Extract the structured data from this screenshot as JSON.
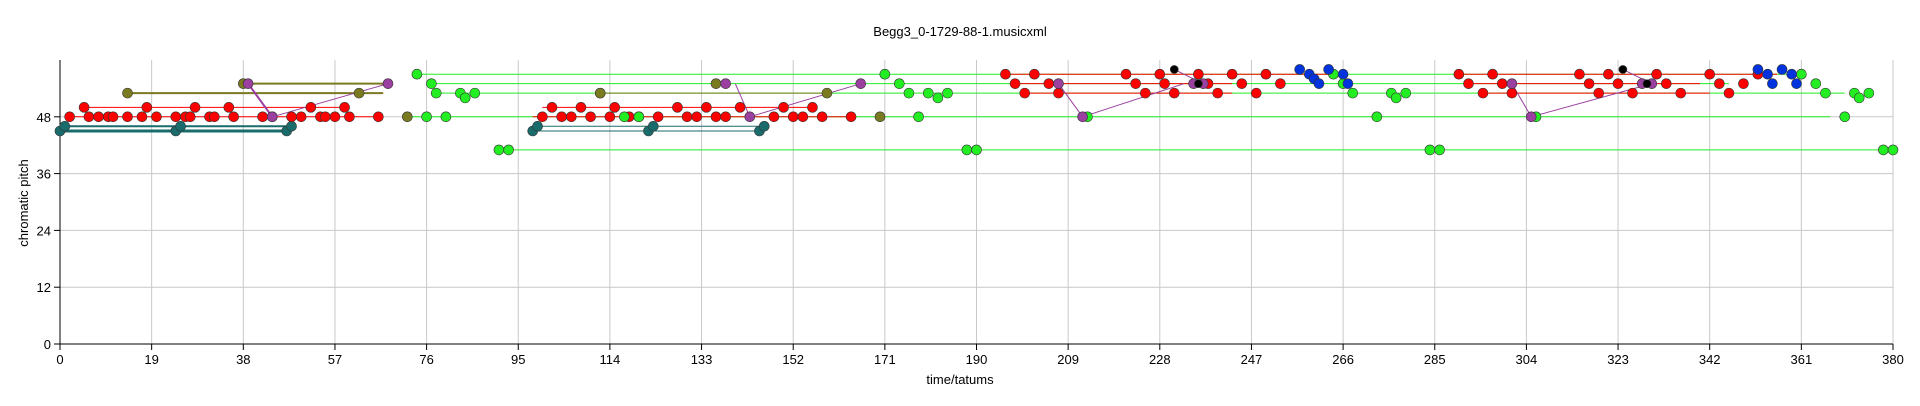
{
  "chart_data": {
    "type": "scatter",
    "title": "Begg3_0-1729-88-1.musicxml",
    "xlabel": "time/tatums",
    "ylabel": "chromatic pitch",
    "xlim": [
      0,
      380
    ],
    "ylim": [
      0,
      60
    ],
    "xticks": [
      0,
      19,
      38,
      57,
      76,
      95,
      114,
      133,
      152,
      171,
      190,
      209,
      228,
      247,
      266,
      285,
      304,
      323,
      342,
      361,
      380
    ],
    "yticks": [
      0,
      12,
      24,
      36,
      48
    ],
    "grid": true,
    "colors": {
      "red": "#ff0000",
      "green": "#22ee22",
      "blue": "#0033dd",
      "teal": "#1a6b6b",
      "olive": "#7a7a20",
      "purple": "#9b3fa0",
      "black": "#000000"
    },
    "segments": [
      {
        "color": "teal",
        "x1": 0,
        "x2": 46,
        "y": 45,
        "w": 3
      },
      {
        "color": "teal",
        "x1": 1,
        "x2": 48,
        "y": 46,
        "w": 2
      },
      {
        "color": "red",
        "x1": 1,
        "x2": 66,
        "y": 48,
        "w": 1
      },
      {
        "color": "red",
        "x1": 5,
        "x2": 60,
        "y": 50,
        "w": 1
      },
      {
        "color": "olive",
        "x1": 14,
        "x2": 67,
        "y": 53,
        "w": 2
      },
      {
        "color": "olive",
        "x1": 38,
        "x2": 69,
        "y": 55,
        "w": 2
      },
      {
        "color": "green",
        "x1": 74,
        "x2": 361,
        "y": 57,
        "w": 1
      },
      {
        "color": "green",
        "x1": 77,
        "x2": 346,
        "y": 55,
        "w": 1
      },
      {
        "color": "green",
        "x1": 78,
        "x2": 370,
        "y": 53,
        "w": 1
      },
      {
        "color": "green",
        "x1": 72,
        "x2": 367,
        "y": 48,
        "w": 1
      },
      {
        "color": "green",
        "x1": 90,
        "x2": 380,
        "y": 41,
        "w": 1
      },
      {
        "color": "teal",
        "x1": 98,
        "x2": 146,
        "y": 46,
        "w": 1
      },
      {
        "color": "teal",
        "x1": 97,
        "x2": 145,
        "y": 45,
        "w": 1
      },
      {
        "color": "red",
        "x1": 100,
        "x2": 156,
        "y": 50,
        "w": 1
      },
      {
        "color": "red",
        "x1": 98,
        "x2": 164,
        "y": 48,
        "w": 1
      },
      {
        "color": "olive",
        "x1": 112,
        "x2": 160,
        "y": 53,
        "w": 1
      },
      {
        "color": "red",
        "x1": 196,
        "x2": 263,
        "y": 57,
        "w": 1
      },
      {
        "color": "red",
        "x1": 198,
        "x2": 243,
        "y": 55,
        "w": 1
      },
      {
        "color": "red",
        "x1": 200,
        "x2": 243,
        "y": 53,
        "w": 1
      },
      {
        "color": "red",
        "x1": 290,
        "x2": 356,
        "y": 57,
        "w": 1
      },
      {
        "color": "red",
        "x1": 292,
        "x2": 340,
        "y": 55,
        "w": 1
      },
      {
        "color": "red",
        "x1": 295,
        "x2": 342,
        "y": 53,
        "w": 1
      }
    ],
    "links": [
      {
        "x1": 39,
        "y1": 55,
        "x2": 44,
        "y2": 48,
        "w": 2
      },
      {
        "x1": 44,
        "y1": 48,
        "x2": 68,
        "y2": 55,
        "w": 1
      },
      {
        "x1": 140,
        "y1": 55,
        "x2": 143,
        "y2": 48,
        "w": 1
      },
      {
        "x1": 143,
        "y1": 48,
        "x2": 166,
        "y2": 55,
        "w": 1
      },
      {
        "x1": 231,
        "y1": 58,
        "x2": 237,
        "y2": 55,
        "w": 1
      },
      {
        "x1": 212,
        "y1": 48,
        "x2": 233,
        "y2": 55,
        "w": 1
      },
      {
        "x1": 207,
        "y1": 55,
        "x2": 212,
        "y2": 48,
        "w": 1
      },
      {
        "x1": 305,
        "y1": 48,
        "x2": 330,
        "y2": 55,
        "w": 1
      },
      {
        "x1": 301,
        "y1": 55,
        "x2": 305,
        "y2": 48,
        "w": 1
      },
      {
        "x1": 324,
        "y1": 58,
        "x2": 330,
        "y2": 55,
        "w": 1
      }
    ],
    "points": [
      {
        "color": "teal",
        "r": 5,
        "xy": [
          [
            0,
            45
          ],
          [
            1,
            46
          ],
          [
            24,
            45
          ],
          [
            25,
            46
          ],
          [
            47,
            45
          ],
          [
            48,
            46
          ],
          [
            98,
            45
          ],
          [
            99,
            46
          ],
          [
            122,
            45
          ],
          [
            123,
            46
          ],
          [
            145,
            45
          ],
          [
            146,
            46
          ]
        ]
      },
      {
        "color": "red",
        "r": 5,
        "xy": [
          [
            2,
            48
          ],
          [
            5,
            50
          ],
          [
            6,
            48
          ],
          [
            8,
            48
          ],
          [
            10,
            48
          ],
          [
            11,
            48
          ],
          [
            14,
            48
          ],
          [
            17,
            48
          ],
          [
            18,
            50
          ],
          [
            20,
            48
          ],
          [
            24,
            48
          ],
          [
            26,
            48
          ],
          [
            27,
            48
          ],
          [
            28,
            50
          ],
          [
            31,
            48
          ],
          [
            32,
            48
          ],
          [
            35,
            50
          ],
          [
            36,
            48
          ],
          [
            42,
            48
          ],
          [
            44,
            48
          ],
          [
            48,
            48
          ],
          [
            50,
            48
          ],
          [
            52,
            50
          ],
          [
            54,
            48
          ],
          [
            55,
            48
          ],
          [
            57,
            48
          ],
          [
            59,
            50
          ],
          [
            60,
            48
          ],
          [
            66,
            48
          ],
          [
            100,
            48
          ],
          [
            102,
            50
          ],
          [
            104,
            48
          ],
          [
            106,
            48
          ],
          [
            108,
            50
          ],
          [
            110,
            48
          ],
          [
            114,
            48
          ],
          [
            115,
            50
          ],
          [
            118,
            48
          ],
          [
            120,
            48
          ],
          [
            124,
            48
          ],
          [
            128,
            50
          ],
          [
            130,
            48
          ],
          [
            132,
            48
          ],
          [
            134,
            50
          ],
          [
            136,
            48
          ],
          [
            138,
            48
          ],
          [
            141,
            50
          ],
          [
            148,
            48
          ],
          [
            150,
            50
          ],
          [
            152,
            48
          ],
          [
            154,
            48
          ],
          [
            156,
            50
          ],
          [
            158,
            48
          ],
          [
            164,
            48
          ]
        ]
      },
      {
        "color": "red",
        "r": 5,
        "xy": [
          [
            196,
            57
          ],
          [
            198,
            55
          ],
          [
            200,
            53
          ],
          [
            202,
            57
          ],
          [
            205,
            55
          ],
          [
            207,
            53
          ],
          [
            221,
            57
          ],
          [
            223,
            55
          ],
          [
            225,
            53
          ],
          [
            228,
            57
          ],
          [
            229,
            55
          ],
          [
            231,
            53
          ],
          [
            236,
            57
          ],
          [
            238,
            55
          ],
          [
            240,
            53
          ],
          [
            243,
            57
          ],
          [
            245,
            55
          ],
          [
            248,
            53
          ],
          [
            250,
            57
          ],
          [
            253,
            55
          ],
          [
            290,
            57
          ],
          [
            292,
            55
          ],
          [
            295,
            53
          ],
          [
            297,
            57
          ],
          [
            299,
            55
          ],
          [
            301,
            53
          ],
          [
            315,
            57
          ],
          [
            317,
            55
          ],
          [
            319,
            53
          ],
          [
            321,
            57
          ],
          [
            323,
            55
          ],
          [
            326,
            53
          ],
          [
            331,
            57
          ],
          [
            333,
            55
          ],
          [
            336,
            53
          ],
          [
            342,
            57
          ],
          [
            344,
            55
          ],
          [
            346,
            53
          ],
          [
            349,
            55
          ],
          [
            352,
            57
          ]
        ]
      },
      {
        "color": "green",
        "r": 5,
        "xy": [
          [
            74,
            57
          ],
          [
            77,
            55
          ],
          [
            78,
            53
          ],
          [
            83,
            53
          ],
          [
            84,
            52
          ],
          [
            86,
            53
          ],
          [
            91,
            41
          ],
          [
            93,
            41
          ],
          [
            112,
            53
          ],
          [
            117,
            48
          ],
          [
            120,
            48
          ],
          [
            76,
            48
          ],
          [
            80,
            48
          ],
          [
            171,
            57
          ],
          [
            174,
            55
          ],
          [
            176,
            53
          ],
          [
            178,
            48
          ],
          [
            180,
            53
          ],
          [
            182,
            52
          ],
          [
            184,
            53
          ],
          [
            188,
            41
          ],
          [
            190,
            41
          ],
          [
            213,
            48
          ],
          [
            264,
            57
          ],
          [
            266,
            55
          ],
          [
            268,
            53
          ],
          [
            273,
            48
          ],
          [
            276,
            53
          ],
          [
            277,
            52
          ],
          [
            279,
            53
          ],
          [
            284,
            41
          ],
          [
            286,
            41
          ],
          [
            306,
            48
          ],
          [
            361,
            57
          ],
          [
            364,
            55
          ],
          [
            366,
            53
          ],
          [
            370,
            48
          ],
          [
            372,
            53
          ],
          [
            373,
            52
          ],
          [
            375,
            53
          ],
          [
            378,
            41
          ],
          [
            380,
            41
          ]
        ]
      },
      {
        "color": "blue",
        "r": 5,
        "xy": [
          [
            257,
            58
          ],
          [
            259,
            57
          ],
          [
            260,
            56
          ],
          [
            261,
            55
          ],
          [
            263,
            58
          ],
          [
            266,
            57
          ],
          [
            267,
            55
          ],
          [
            352,
            58
          ],
          [
            354,
            57
          ],
          [
            355,
            55
          ],
          [
            357,
            58
          ],
          [
            359,
            57
          ],
          [
            360,
            55
          ]
        ]
      },
      {
        "color": "olive",
        "r": 5,
        "xy": [
          [
            14,
            53
          ],
          [
            38,
            55
          ],
          [
            62,
            53
          ],
          [
            72,
            48
          ],
          [
            112,
            53
          ],
          [
            136,
            55
          ],
          [
            159,
            53
          ],
          [
            170,
            48
          ]
        ]
      },
      {
        "color": "purple",
        "r": 5,
        "xy": [
          [
            39,
            55
          ],
          [
            44,
            48
          ],
          [
            68,
            55
          ],
          [
            138,
            55
          ],
          [
            143,
            48
          ],
          [
            166,
            55
          ],
          [
            212,
            48
          ],
          [
            207,
            55
          ],
          [
            237,
            55
          ],
          [
            235,
            55
          ],
          [
            305,
            48
          ],
          [
            301,
            55
          ],
          [
            330,
            55
          ],
          [
            328,
            55
          ]
        ]
      },
      {
        "color": "black",
        "r": 4,
        "xy": [
          [
            231,
            58
          ],
          [
            324,
            58
          ],
          [
            236,
            55
          ],
          [
            329,
            55
          ]
        ]
      }
    ]
  }
}
